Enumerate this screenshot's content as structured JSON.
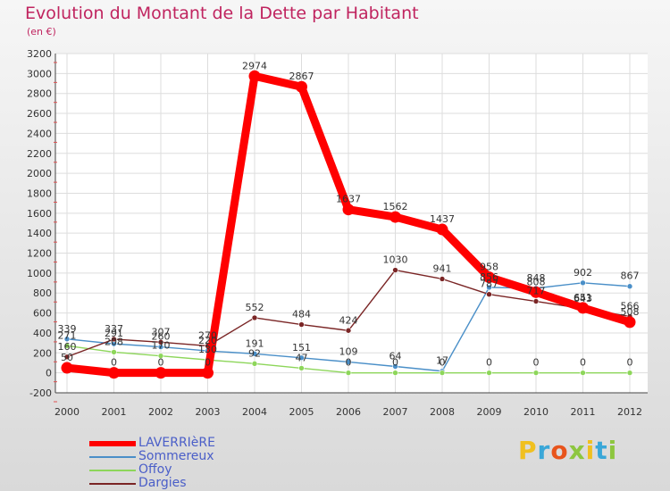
{
  "title": "Evolution du Montant de la Dette par Habitant",
  "subtitle": "(en €)",
  "brand": {
    "text": "Proxiti",
    "colors": [
      "#f0c020",
      "#3aa7d8",
      "#e8541c",
      "#8dc63f",
      "#f0c020",
      "#3aa7d8",
      "#8dc63f"
    ]
  },
  "chart_data": {
    "type": "line",
    "x": [
      "2000",
      "2001",
      "2002",
      "2003",
      "2004",
      "2005",
      "2006",
      "2007",
      "2008",
      "2009",
      "2010",
      "2011",
      "2012"
    ],
    "ylim": [
      -200,
      3200
    ],
    "yticks": [
      "-200",
      "0",
      "200",
      "400",
      "600",
      "800",
      "1000",
      "1200",
      "1400",
      "1600",
      "1800",
      "2000",
      "2200",
      "2400",
      "2600",
      "2800",
      "3000",
      "3200"
    ],
    "grid": true,
    "legend_position": "bottom-left",
    "series": [
      {
        "name": "LAVERRIèRE",
        "color": "#ff0000",
        "values": [
          50,
          0,
          0,
          0,
          2974,
          2867,
          1637,
          1562,
          1437,
          958,
          808,
          651,
          508
        ],
        "labels": [
          "50",
          "0",
          "0",
          "0",
          "2974",
          "2867",
          "1637",
          "1562",
          "1437",
          "958",
          "808",
          "651",
          "508"
        ]
      },
      {
        "name": "Sommereux",
        "color": "#4a8fc8",
        "values": [
          339,
          291,
          260,
          220,
          191,
          151,
          109,
          64,
          17,
          856,
          848,
          902,
          867
        ],
        "labels": [
          "339",
          "291",
          "260",
          "220",
          "191",
          "151",
          "109",
          "64",
          "17",
          "856",
          "848",
          "902",
          "867"
        ]
      },
      {
        "name": "Offoy",
        "color": "#8dd65a",
        "values": [
          271,
          208,
          170,
          130,
          92,
          47,
          0,
          0,
          0,
          0,
          0,
          0,
          0
        ],
        "labels": [
          "271",
          "208",
          "170",
          "130",
          "92",
          "47",
          "0",
          "0",
          "0",
          "0",
          "0",
          "0",
          "0"
        ]
      },
      {
        "name": "Dargies",
        "color": "#7a2525",
        "values": [
          160,
          337,
          307,
          270,
          552,
          484,
          424,
          1030,
          941,
          787,
          717,
          643,
          566
        ],
        "labels": [
          "160",
          "337",
          "307",
          "270",
          "552",
          "484",
          "424",
          "1030",
          "941",
          "787",
          "717",
          "643",
          "566"
        ]
      }
    ]
  }
}
